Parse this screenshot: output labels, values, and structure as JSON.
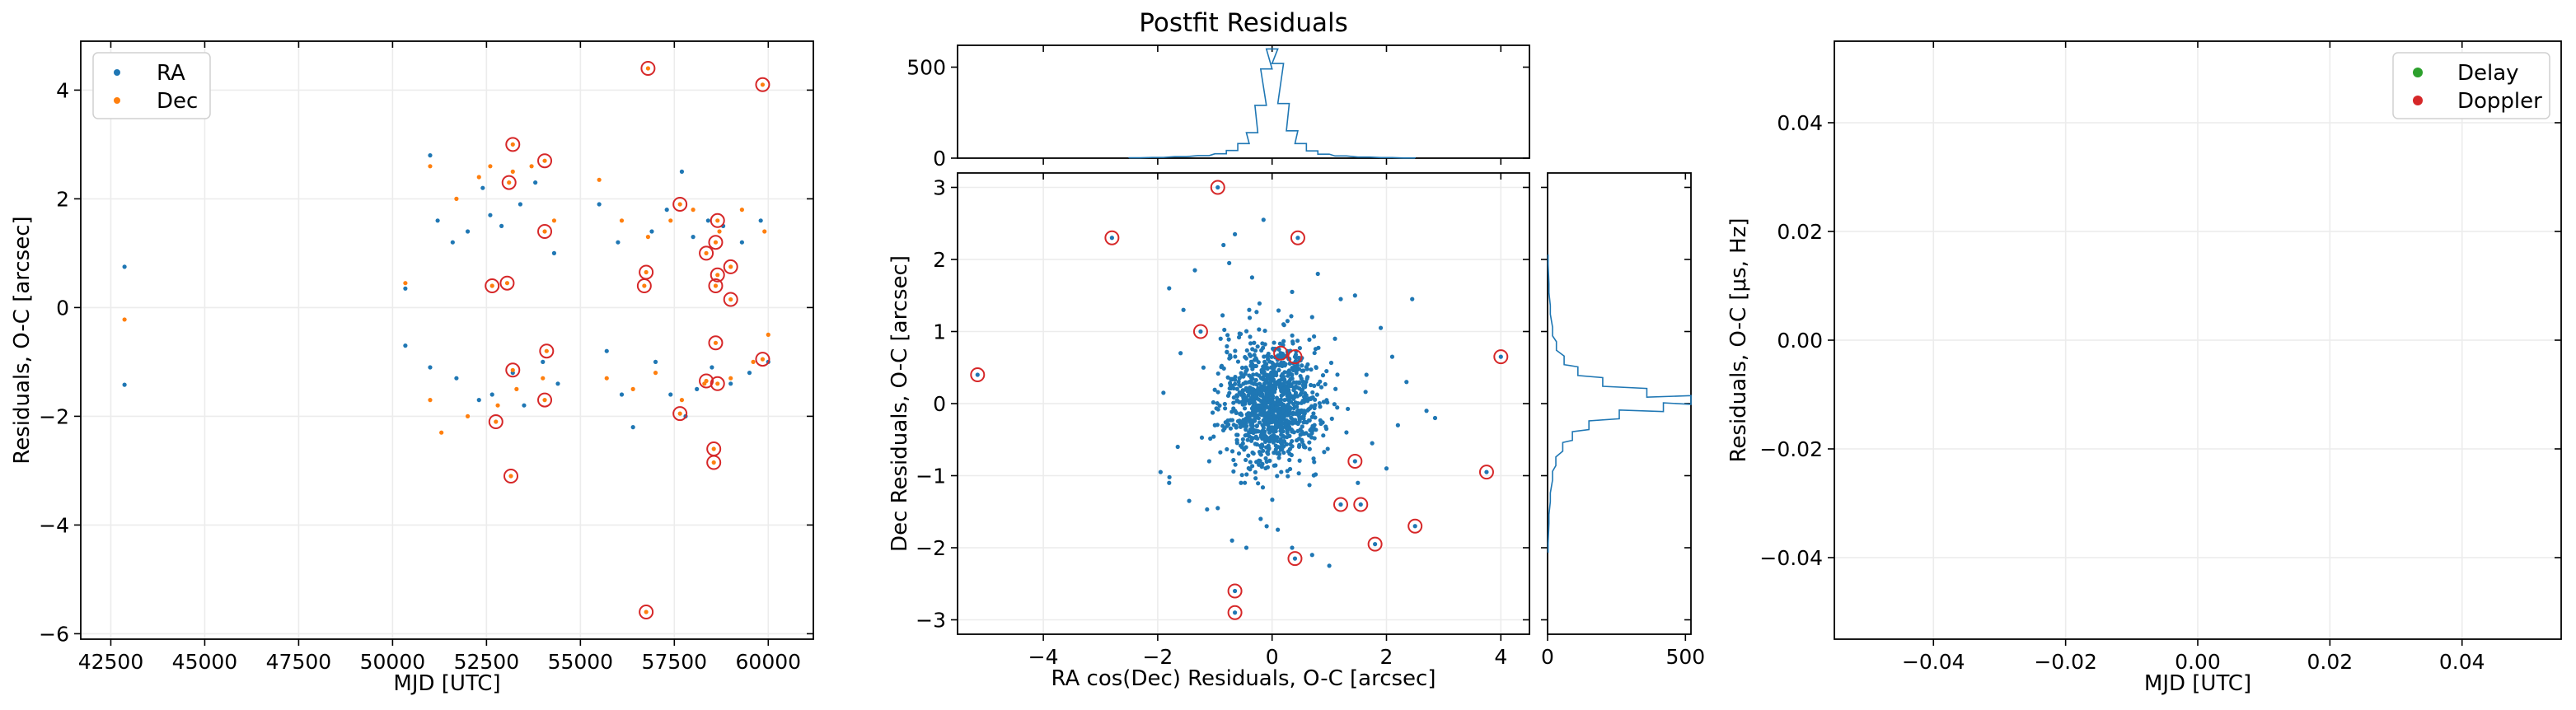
{
  "colors": {
    "ra": "#1f77b4",
    "dec": "#ff7f0e",
    "delay": "#2ca02c",
    "doppler": "#d62728",
    "outlier_ring": "#d62728",
    "grid": "#ececec",
    "hist": "#1f77b4"
  },
  "chart_data": [
    {
      "type": "scatter",
      "title": "",
      "xlabel": "MJD [UTC]",
      "ylabel": "Residuals, O-C [arcsec]",
      "xlim": [
        41700,
        61200
      ],
      "ylim": [
        -6.1,
        4.9
      ],
      "xticks": [
        42500,
        45000,
        47500,
        50000,
        52500,
        55000,
        57500,
        60000
      ],
      "yticks": [
        -6,
        -4,
        -2,
        0,
        2,
        4
      ],
      "grid": true,
      "legend_position": "top-left",
      "series": [
        {
          "name": "RA",
          "points": [
            [
              42865,
              0.75
            ],
            [
              42865,
              -1.42
            ],
            [
              50340,
              0.35
            ],
            [
              50340,
              -0.7
            ],
            [
              51000,
              2.8
            ],
            [
              51000,
              -1.1
            ],
            [
              51200,
              1.6
            ],
            [
              51600,
              1.2
            ],
            [
              51700,
              -1.3
            ],
            [
              52000,
              1.4
            ],
            [
              52400,
              2.2
            ],
            [
              52300,
              -1.7
            ],
            [
              52600,
              1.7
            ],
            [
              52650,
              -1.6
            ],
            [
              52900,
              1.5
            ],
            [
              53200,
              -1.2
            ],
            [
              53400,
              1.9
            ],
            [
              53500,
              -1.8
            ],
            [
              53800,
              2.3
            ],
            [
              54000,
              -1.0
            ],
            [
              54300,
              1.0
            ],
            [
              54400,
              -1.4
            ],
            [
              55500,
              1.9
            ],
            [
              55700,
              -0.8
            ],
            [
              56000,
              1.2
            ],
            [
              56100,
              -1.6
            ],
            [
              56400,
              -2.2
            ],
            [
              56900,
              1.4
            ],
            [
              57000,
              -1.0
            ],
            [
              57300,
              1.8
            ],
            [
              57400,
              -1.6
            ],
            [
              57700,
              2.5
            ],
            [
              57800,
              -2.0
            ],
            [
              58000,
              1.3
            ],
            [
              58100,
              -1.5
            ],
            [
              58400,
              1.6
            ],
            [
              58500,
              -1.1
            ],
            [
              58800,
              1.5
            ],
            [
              59000,
              -1.4
            ],
            [
              59300,
              1.2
            ],
            [
              59500,
              -1.2
            ],
            [
              59800,
              1.6
            ],
            [
              60000,
              -1.0
            ]
          ]
        },
        {
          "name": "Dec",
          "points": [
            [
              42865,
              -0.22
            ],
            [
              50340,
              0.45
            ],
            [
              51000,
              2.6
            ],
            [
              51000,
              -1.7
            ],
            [
              51300,
              -2.3
            ],
            [
              51700,
              2.0
            ],
            [
              52000,
              -2.0
            ],
            [
              52300,
              2.4
            ],
            [
              52600,
              2.6
            ],
            [
              52800,
              -1.8
            ],
            [
              53200,
              2.5
            ],
            [
              53300,
              -1.5
            ],
            [
              53700,
              2.6
            ],
            [
              54000,
              -1.3
            ],
            [
              54300,
              1.6
            ],
            [
              55500,
              2.35
            ],
            [
              55700,
              -1.3
            ],
            [
              56100,
              1.6
            ],
            [
              56400,
              -1.5
            ],
            [
              56800,
              1.3
            ],
            [
              57000,
              -1.2
            ],
            [
              57400,
              1.6
            ],
            [
              57700,
              -1.7
            ],
            [
              58000,
              1.8
            ],
            [
              58300,
              -1.4
            ],
            [
              58700,
              1.4
            ],
            [
              59000,
              -1.3
            ],
            [
              59300,
              1.8
            ],
            [
              59600,
              -1.0
            ],
            [
              59900,
              1.4
            ],
            [
              60000,
              -0.5
            ]
          ]
        }
      ],
      "outliers": [
        [
          56800,
          4.4
        ],
        [
          59850,
          4.1
        ],
        [
          53200,
          3.0
        ],
        [
          53100,
          2.3
        ],
        [
          54050,
          2.7
        ],
        [
          57650,
          1.9
        ],
        [
          58650,
          1.6
        ],
        [
          58600,
          1.2
        ],
        [
          54050,
          1.4
        ],
        [
          58350,
          1.0
        ],
        [
          59000,
          0.75
        ],
        [
          58650,
          0.6
        ],
        [
          56750,
          0.65
        ],
        [
          56700,
          0.4
        ],
        [
          53050,
          0.45
        ],
        [
          52650,
          0.4
        ],
        [
          58600,
          0.4
        ],
        [
          59000,
          0.15
        ],
        [
          58600,
          -0.65
        ],
        [
          54100,
          -0.8
        ],
        [
          59850,
          -0.95
        ],
        [
          53200,
          -1.15
        ],
        [
          58350,
          -1.35
        ],
        [
          58650,
          -1.4
        ],
        [
          54050,
          -1.7
        ],
        [
          57650,
          -1.95
        ],
        [
          52750,
          -2.1
        ],
        [
          58550,
          -2.6
        ],
        [
          58550,
          -2.85
        ],
        [
          53150,
          -3.1
        ],
        [
          56750,
          -5.6
        ]
      ]
    },
    {
      "type": "scatter",
      "title": "Postfit Residuals",
      "xlabel": "RA cos(Dec) Residuals, O-C [arcsec]",
      "ylabel": "Dec Residuals, O-C [arcsec]",
      "xlim": [
        -5.5,
        4.5
      ],
      "ylim": [
        -3.2,
        3.2
      ],
      "xticks": [
        -4,
        -2,
        0,
        2,
        4
      ],
      "yticks": [
        -3,
        -2,
        -1,
        0,
        1,
        2,
        3
      ],
      "grid": true,
      "points": [
        [
          -0.85,
          2.2
        ],
        [
          -0.65,
          2.35
        ],
        [
          -0.75,
          1.95
        ],
        [
          -0.15,
          2.55
        ],
        [
          -1.8,
          1.6
        ],
        [
          -1.9,
          0.15
        ],
        [
          -1.95,
          -0.95
        ],
        [
          -1.8,
          -1.1
        ],
        [
          -1.65,
          -0.6
        ],
        [
          -1.55,
          1.3
        ],
        [
          -1.35,
          1.85
        ],
        [
          -1.2,
          0.5
        ],
        [
          -1.1,
          -0.8
        ],
        [
          -0.95,
          -1.45
        ],
        [
          -0.7,
          -1.9
        ],
        [
          -0.45,
          -2.0
        ],
        [
          -0.2,
          -1.6
        ],
        [
          0.1,
          -1.75
        ],
        [
          0.35,
          -2.0
        ],
        [
          0.7,
          -2.1
        ],
        [
          1.0,
          -2.25
        ],
        [
          1.5,
          -1.1
        ],
        [
          1.45,
          1.5
        ],
        [
          1.9,
          1.05
        ],
        [
          2.1,
          0.65
        ],
        [
          2.2,
          -0.3
        ],
        [
          2.35,
          0.3
        ],
        [
          2.7,
          -0.1
        ],
        [
          2.85,
          -0.2
        ],
        [
          2.45,
          1.45
        ],
        [
          2.0,
          -0.9
        ],
        [
          1.2,
          1.45
        ],
        [
          0.8,
          1.8
        ],
        [
          0.35,
          1.55
        ],
        [
          -0.35,
          1.75
        ],
        [
          -1.45,
          -1.35
        ],
        [
          -1.6,
          0.7
        ],
        [
          1.75,
          -0.55
        ],
        [
          1.65,
          0.4
        ],
        [
          -0.4,
          1.3
        ],
        [
          0.2,
          1.1
        ],
        [
          0.7,
          1.2
        ],
        [
          -0.9,
          0.9
        ],
        [
          1.1,
          0.9
        ],
        [
          -1.0,
          -0.3
        ],
        [
          1.3,
          -0.4
        ]
      ],
      "outliers": [
        [
          -5.15,
          0.4
        ],
        [
          -2.8,
          2.3
        ],
        [
          -0.95,
          3.0
        ],
        [
          0.45,
          2.3
        ],
        [
          -1.25,
          1.0
        ],
        [
          0.15,
          0.7
        ],
        [
          0.4,
          0.65
        ],
        [
          4.0,
          0.65
        ],
        [
          3.75,
          -0.95
        ],
        [
          1.45,
          -0.8
        ],
        [
          1.2,
          -1.4
        ],
        [
          1.55,
          -1.4
        ],
        [
          2.5,
          -1.7
        ],
        [
          1.8,
          -1.95
        ],
        [
          0.4,
          -2.15
        ],
        [
          -0.65,
          -2.6
        ],
        [
          -0.65,
          -2.9
        ]
      ],
      "marginal_x": {
        "xlim": [
          -5.5,
          4.5
        ],
        "ylim": [
          0,
          620
        ],
        "yticks": [
          0,
          500
        ],
        "bins": [
          [
            -2.4,
            2
          ],
          [
            -2.0,
            4
          ],
          [
            -1.6,
            8
          ],
          [
            -1.2,
            14
          ],
          [
            -0.9,
            24
          ],
          [
            -0.7,
            42
          ],
          [
            -0.5,
            80
          ],
          [
            -0.35,
            140
          ],
          [
            -0.2,
            290
          ],
          [
            -0.1,
            490
          ],
          [
            0.0,
            600
          ],
          [
            0.1,
            520
          ],
          [
            0.2,
            300
          ],
          [
            0.35,
            150
          ],
          [
            0.5,
            80
          ],
          [
            0.7,
            40
          ],
          [
            0.9,
            22
          ],
          [
            1.2,
            12
          ],
          [
            1.6,
            6
          ],
          [
            2.0,
            3
          ],
          [
            2.4,
            1
          ]
        ]
      },
      "marginal_y": {
        "xlim": [
          0,
          520
        ],
        "xticks": [
          0,
          500
        ],
        "ylim": [
          -3.2,
          3.2
        ],
        "bins": [
          [
            -2.0,
            2
          ],
          [
            -1.6,
            5
          ],
          [
            -1.3,
            10
          ],
          [
            -1.0,
            18
          ],
          [
            -0.8,
            30
          ],
          [
            -0.6,
            55
          ],
          [
            -0.45,
            90
          ],
          [
            -0.3,
            150
          ],
          [
            -0.15,
            260
          ],
          [
            -0.05,
            420
          ],
          [
            0.05,
            520
          ],
          [
            0.15,
            360
          ],
          [
            0.3,
            200
          ],
          [
            0.45,
            110
          ],
          [
            0.6,
            60
          ],
          [
            0.8,
            32
          ],
          [
            1.0,
            18
          ],
          [
            1.3,
            10
          ],
          [
            1.6,
            5
          ],
          [
            2.0,
            2
          ]
        ]
      }
    },
    {
      "type": "scatter",
      "title": "",
      "xlabel": "MJD [UTC]",
      "ylabel": "Residuals, O-C [μs, Hz]",
      "xlim": [
        -0.055,
        0.055
      ],
      "ylim": [
        -0.055,
        0.055
      ],
      "xticks": [
        -0.04,
        -0.02,
        0.0,
        0.02,
        0.04
      ],
      "yticks": [
        -0.04,
        -0.02,
        0.0,
        0.02,
        0.04
      ],
      "grid": true,
      "legend_position": "top-right",
      "series": [
        {
          "name": "Delay",
          "points": []
        },
        {
          "name": "Doppler",
          "points": []
        }
      ]
    }
  ]
}
